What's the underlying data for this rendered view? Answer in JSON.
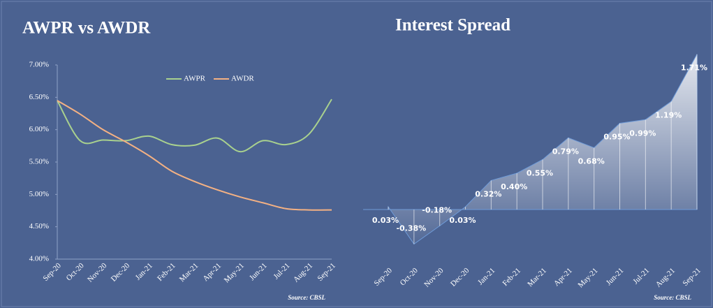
{
  "chart_data": [
    {
      "type": "line",
      "title": "AWPR vs AWDR",
      "categories": [
        "Sep-20",
        "Oct-20",
        "Nov-20",
        "Dec-20",
        "Jan-21",
        "Feb-21",
        "Mar-21",
        "Apr-21",
        "May-21",
        "Jun-21",
        "Jul-21",
        "Aug-21",
        "Sep-21"
      ],
      "series": [
        {
          "name": "AWPR",
          "color": "#a9d18e",
          "values": [
            6.45,
            5.83,
            5.84,
            5.83,
            5.9,
            5.77,
            5.76,
            5.87,
            5.66,
            5.83,
            5.77,
            5.93,
            6.47
          ]
        },
        {
          "name": "AWDR",
          "color": "#f4b183",
          "values": [
            6.45,
            6.24,
            6.0,
            5.81,
            5.6,
            5.36,
            5.2,
            5.07,
            4.96,
            4.87,
            4.78,
            4.76,
            4.76
          ]
        }
      ],
      "ylim": [
        4,
        7
      ],
      "yticks": [
        {
          "value": 4,
          "label": "4.00%"
        },
        {
          "value": 4.5,
          "label": "4.50%"
        },
        {
          "value": 5,
          "label": "5.00%"
        },
        {
          "value": 5.5,
          "label": "5.50%"
        },
        {
          "value": 6,
          "label": "6.00%"
        },
        {
          "value": 6.5,
          "label": "6.50%"
        },
        {
          "value": 7,
          "label": "7.00%"
        }
      ],
      "legend": "top",
      "source": "Source: CBSL"
    },
    {
      "type": "area",
      "title": "Interest Spread",
      "categories": [
        "Sep-20",
        "Oct-20",
        "Nov-20",
        "Dec-20",
        "Jan-21",
        "Feb-21",
        "Mar-21",
        "Apr-21",
        "May-21",
        "Jun-21",
        "Jul-21",
        "Aug-21",
        "Sep-21"
      ],
      "values": [
        0.03,
        -0.38,
        -0.18,
        0.03,
        0.32,
        0.4,
        0.55,
        0.79,
        0.68,
        0.95,
        0.99,
        1.19,
        1.71
      ],
      "value_labels": [
        "0.03%",
        "-0.38%",
        "-0.18%",
        "0.03%",
        "0.32%",
        "0.40%",
        "0.55%",
        "0.79%",
        "0.68%",
        "0.95%",
        "0.99%",
        "1.19%",
        "1.71%"
      ],
      "color": "#ffffff",
      "source": "Source: CBSL"
    }
  ]
}
